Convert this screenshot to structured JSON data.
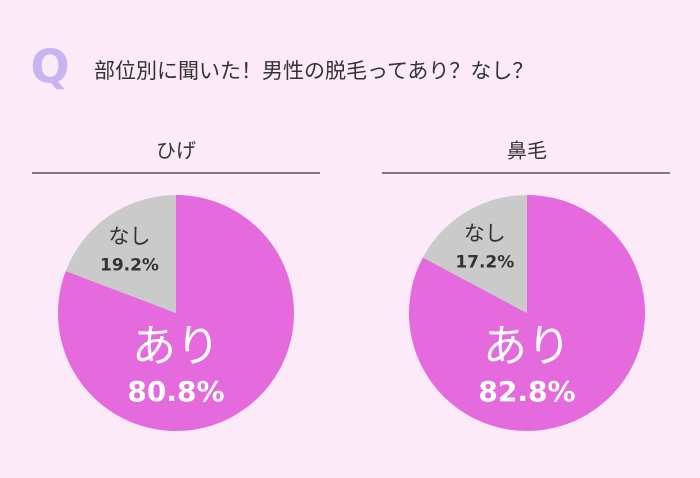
{
  "header": {
    "mark": "Q",
    "title": "部位別に聞いた！男性の脱毛ってあり？なし？"
  },
  "chart_data": [
    {
      "type": "pie",
      "title": "ひげ",
      "categories": [
        "あり",
        "なし"
      ],
      "values": [
        80.8,
        19.2
      ],
      "value_labels": [
        "80.8%",
        "19.2%"
      ],
      "colors": [
        "#e56ade",
        "#cacaca"
      ]
    },
    {
      "type": "pie",
      "title": "鼻毛",
      "categories": [
        "あり",
        "なし"
      ],
      "values": [
        82.8,
        17.2
      ],
      "value_labels": [
        "82.8%",
        "17.2%"
      ],
      "colors": [
        "#e56ade",
        "#cacaca"
      ]
    }
  ]
}
